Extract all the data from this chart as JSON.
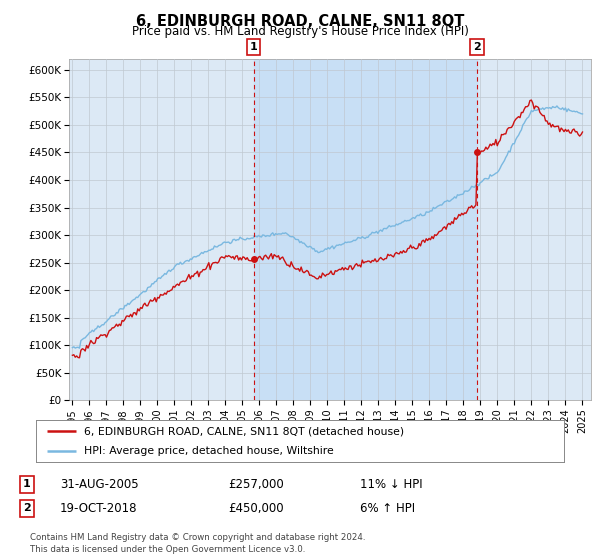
{
  "title": "6, EDINBURGH ROAD, CALNE, SN11 8QT",
  "subtitle": "Price paid vs. HM Land Registry's House Price Index (HPI)",
  "background_color": "#dce9f5",
  "plot_bg_color": "#dce9f5",
  "outer_bg_color": "#ffffff",
  "hpi_color": "#7ab8e0",
  "price_color": "#cc1111",
  "highlight_color": "#c8dff5",
  "marker1_x": 2005.667,
  "marker1_y": 257000,
  "marker2_x": 2018.8,
  "marker2_y": 450000,
  "ylim": [
    0,
    620000
  ],
  "yticks": [
    0,
    50000,
    100000,
    150000,
    200000,
    250000,
    300000,
    350000,
    400000,
    450000,
    500000,
    550000,
    600000
  ],
  "ytick_labels": [
    "£0",
    "£50K",
    "£100K",
    "£150K",
    "£200K",
    "£250K",
    "£300K",
    "£350K",
    "£400K",
    "£450K",
    "£500K",
    "£550K",
    "£600K"
  ],
  "xmin": 1994.8,
  "xmax": 2025.5,
  "legend_label1": "6, EDINBURGH ROAD, CALNE, SN11 8QT (detached house)",
  "legend_label2": "HPI: Average price, detached house, Wiltshire",
  "annotation1_date": "31-AUG-2005",
  "annotation1_price": "£257,000",
  "annotation1_hpi": "11% ↓ HPI",
  "annotation2_date": "19-OCT-2018",
  "annotation2_price": "£450,000",
  "annotation2_hpi": "6% ↑ HPI",
  "footer": "Contains HM Land Registry data © Crown copyright and database right 2024.\nThis data is licensed under the Open Government Licence v3.0."
}
